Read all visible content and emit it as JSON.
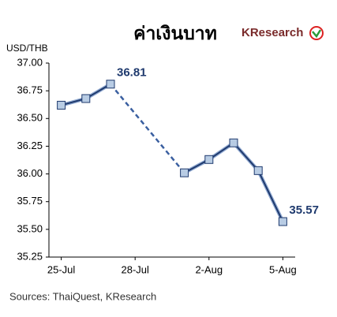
{
  "chart_data": {
    "type": "line",
    "title": "ค่าเงินบาท",
    "brand": "KResearch",
    "y_label": "USD/THB",
    "source": "Sources: ThaiQuest, KResearch",
    "categories": [
      "25-Jul",
      null,
      null,
      "28-Jul",
      null,
      null,
      "2-Aug",
      null,
      null,
      "5-Aug"
    ],
    "series": [
      {
        "name": "USD/THB",
        "color": "#1f3a6e",
        "values": [
          36.62,
          36.68,
          36.81,
          null,
          null,
          36.01,
          36.13,
          36.28,
          36.03,
          35.57
        ]
      }
    ],
    "ylim": [
      35.25,
      37.0
    ],
    "yticks": [
      35.25,
      {
        "value": 35.5,
        "label": "35.50"
      },
      35.75,
      {
        "value": 36.0,
        "label": "36.00"
      },
      36.25,
      {
        "value": 36.5,
        "label": "36.50"
      },
      36.75,
      {
        "value": 37.0,
        "label": "37.00"
      }
    ],
    "grid": false
  }
}
